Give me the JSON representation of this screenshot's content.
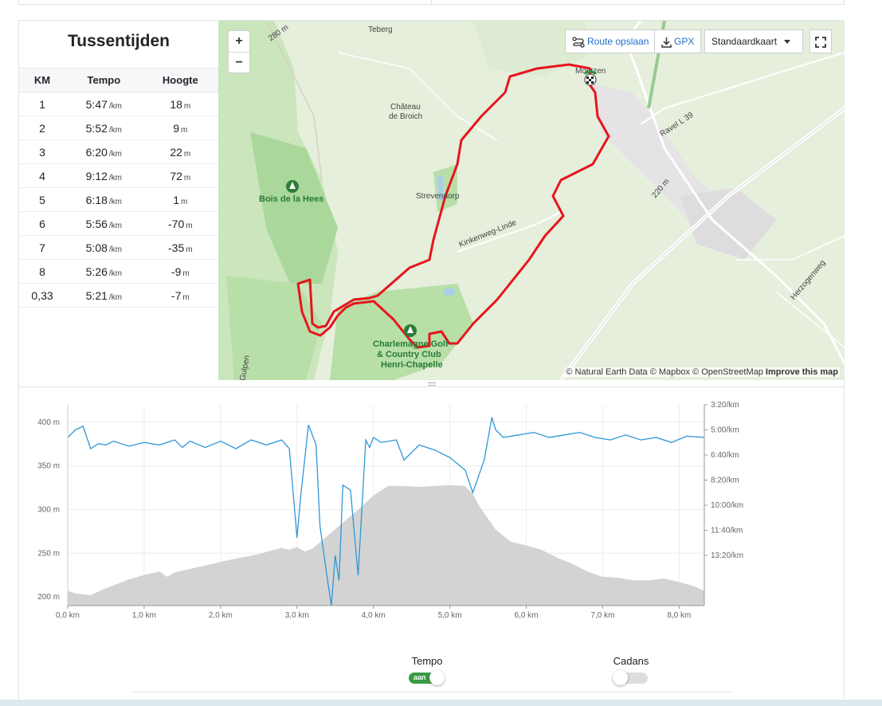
{
  "splits": {
    "title": "Tussentijden",
    "headers": [
      "KM",
      "Tempo",
      "Hoogte"
    ],
    "rows": [
      {
        "km": "1",
        "pace": "5:47",
        "pace_unit": "/km",
        "elev": "18",
        "elev_unit": "m"
      },
      {
        "km": "2",
        "pace": "5:52",
        "pace_unit": "/km",
        "elev": "9",
        "elev_unit": "m"
      },
      {
        "km": "3",
        "pace": "6:20",
        "pace_unit": "/km",
        "elev": "22",
        "elev_unit": "m"
      },
      {
        "km": "4",
        "pace": "9:12",
        "pace_unit": "/km",
        "elev": "72",
        "elev_unit": "m"
      },
      {
        "km": "5",
        "pace": "6:18",
        "pace_unit": "/km",
        "elev": "1",
        "elev_unit": "m"
      },
      {
        "km": "6",
        "pace": "5:56",
        "pace_unit": "/km",
        "elev": "-70",
        "elev_unit": "m"
      },
      {
        "km": "7",
        "pace": "5:08",
        "pace_unit": "/km",
        "elev": "-35",
        "elev_unit": "m"
      },
      {
        "km": "8",
        "pace": "5:26",
        "pace_unit": "/km",
        "elev": "-9",
        "elev_unit": "m"
      },
      {
        "km": "0,33",
        "pace": "5:21",
        "pace_unit": "/km",
        "elev": "-7",
        "elev_unit": "m"
      }
    ]
  },
  "map": {
    "zoom_in": "+",
    "zoom_out": "−",
    "save_route": "Route opslaan",
    "gpx": "GPX",
    "map_style": "Standaardkaart",
    "attribution": "© Natural Earth Data © Mapbox © OpenStreetMap",
    "improve": "Improve this map",
    "labels": {
      "teberg": "Teberg",
      "moetzen": "Moetzen",
      "chateau": "Château",
      "chateau2": "de Broich",
      "bois": "Bois de la Hees",
      "strevendorp": "Strevendorp",
      "kinkenweg": "Kinkenweg-Linde",
      "ravel": "Ravel L 39",
      "herzogenweg": "Herzogenweg",
      "golf1": "Charlemagne Golf",
      "golf2": "& Country Club",
      "golf3": "Henri-Chapelle",
      "gulpen": "Gulpen",
      "c280": "280 m",
      "c220": "220 m"
    },
    "colors": {
      "route": "#e8141c",
      "water": "#a8cfe6",
      "forest": "#a9d89a",
      "road": "#ffffff"
    }
  },
  "chart_data": {
    "type": "area",
    "title": "",
    "xlabel": "",
    "ylabel": "",
    "x_ticks": [
      "0,0 km",
      "1,0 km",
      "2,0 km",
      "3,0 km",
      "4,0 km",
      "5,0 km",
      "6,0 km",
      "7,0 km",
      "8,0 km"
    ],
    "y_ticks_left": [
      "400 m",
      "350 m",
      "300 m",
      "250 m",
      "200 m"
    ],
    "y_ticks_right": [
      "3:20/km",
      "5:00/km",
      "6:40/km",
      "8:20/km",
      "10:00/km",
      "11:40/km",
      "13:20/km"
    ],
    "xlim": [
      0,
      8.33
    ],
    "ylim_left": [
      190,
      420
    ],
    "ylim_right_seconds_per_km": [
      200,
      1000
    ],
    "series": [
      {
        "name": "Hoogte",
        "axis": "left",
        "color": "#d3d3d3",
        "x": [
          0,
          0.1,
          0.3,
          0.5,
          0.8,
          1.0,
          1.2,
          1.3,
          1.4,
          1.6,
          1.8,
          2.0,
          2.2,
          2.5,
          2.7,
          2.8,
          2.9,
          3.0,
          3.1,
          3.2,
          3.4,
          3.6,
          3.8,
          4.0,
          4.1,
          4.2,
          4.4,
          4.6,
          4.8,
          5.0,
          5.2,
          5.3,
          5.4,
          5.6,
          5.8,
          6.0,
          6.2,
          6.4,
          6.6,
          6.8,
          7.0,
          7.2,
          7.4,
          7.6,
          7.8,
          8.0,
          8.2,
          8.33
        ],
        "values": [
          207,
          204,
          202,
          210,
          220,
          225,
          229,
          223,
          228,
          232,
          236,
          240,
          244,
          249,
          254,
          256,
          254,
          257,
          252,
          255,
          270,
          285,
          300,
          316,
          322,
          327,
          327,
          326,
          327,
          328,
          327,
          318,
          302,
          277,
          263,
          259,
          254,
          245,
          238,
          229,
          223,
          222,
          219,
          219,
          221,
          217,
          212,
          207
        ]
      },
      {
        "name": "Tempo",
        "axis": "right",
        "color": "#2f96d8",
        "note": "pace in seconds per km",
        "x": [
          0,
          0.1,
          0.2,
          0.3,
          0.4,
          0.5,
          0.6,
          0.8,
          1.0,
          1.2,
          1.4,
          1.5,
          1.6,
          1.8,
          2.0,
          2.2,
          2.4,
          2.6,
          2.8,
          2.9,
          3.0,
          3.05,
          3.15,
          3.25,
          3.3,
          3.4,
          3.45,
          3.5,
          3.55,
          3.6,
          3.7,
          3.8,
          3.9,
          3.95,
          4.0,
          4.1,
          4.3,
          4.4,
          4.6,
          4.8,
          5.0,
          5.2,
          5.3,
          5.45,
          5.55,
          5.6,
          5.7,
          5.9,
          6.1,
          6.3,
          6.5,
          6.7,
          6.9,
          7.1,
          7.3,
          7.5,
          7.7,
          7.9,
          8.1,
          8.33
        ],
        "values": [
          330,
          300,
          285,
          375,
          355,
          360,
          345,
          365,
          350,
          360,
          340,
          370,
          345,
          370,
          345,
          375,
          340,
          360,
          340,
          375,
          730,
          560,
          280,
          360,
          680,
          900,
          1000,
          800,
          900,
          520,
          540,
          880,
          340,
          370,
          330,
          350,
          340,
          420,
          360,
          380,
          410,
          460,
          550,
          420,
          250,
          300,
          330,
          320,
          310,
          330,
          320,
          310,
          330,
          340,
          320,
          340,
          330,
          350,
          325,
          330
        ]
      }
    ]
  },
  "toggles": {
    "tempo_label": "Tempo",
    "tempo_state": "aan",
    "cadans_label": "Cadans"
  }
}
